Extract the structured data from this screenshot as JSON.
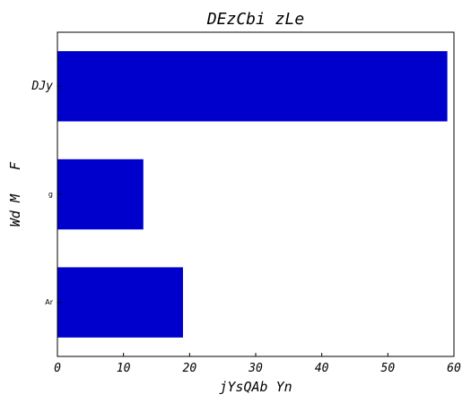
{
  "chart_data": {
    "type": "bar",
    "orientation": "horizontal",
    "title": "DEzCbi zLe",
    "xlabel": "jYsQAb Yn",
    "ylabel": "Wd M   F",
    "categories": [
      "DJy",
      "g",
      "Ar"
    ],
    "values": [
      59,
      13,
      19
    ],
    "xlim": [
      0,
      60
    ],
    "xticks": [
      "0",
      "10",
      "20",
      "30",
      "40",
      "50",
      "60"
    ],
    "grid": false,
    "bar_color": "#0000cc"
  }
}
